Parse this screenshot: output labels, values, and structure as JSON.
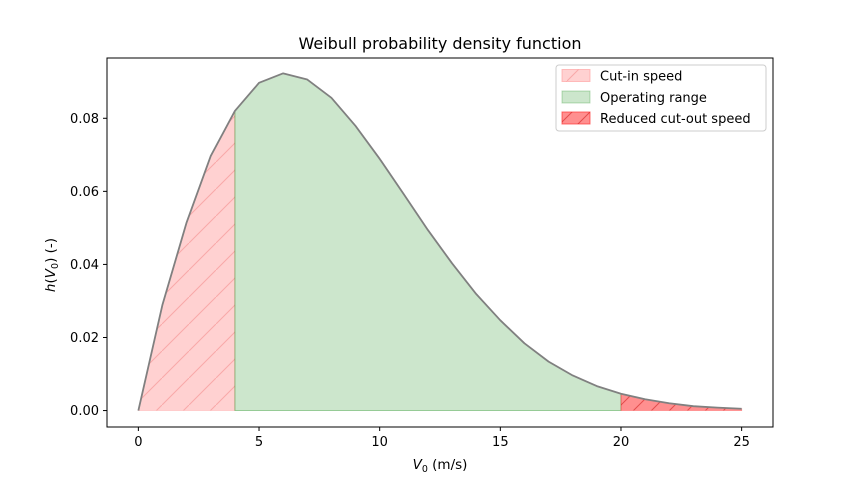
{
  "chart_data": {
    "type": "area",
    "title": "Weibull probability density function",
    "xlabel": {
      "var": "V",
      "sub": "0",
      "unit": " (m/s)"
    },
    "ylabel": {
      "fn": "h",
      "var": "V",
      "sub": "0",
      "unit": " (-)"
    },
    "xlim": [
      -1.3,
      26.3
    ],
    "ylim": [
      -0.0045,
      0.0965
    ],
    "xticks": [
      0,
      5,
      10,
      15,
      20,
      25
    ],
    "xtick_labels": [
      "0",
      "5",
      "10",
      "15",
      "20",
      "25"
    ],
    "yticks": [
      0.0,
      0.02,
      0.04,
      0.06,
      0.08
    ],
    "ytick_labels": [
      "0.00",
      "0.02",
      "0.04",
      "0.06",
      "0.08"
    ],
    "grid": false,
    "legend_position": "upper right",
    "curve": {
      "x": [
        0,
        1,
        2,
        3,
        4,
        5,
        6,
        7,
        8,
        9,
        10,
        11,
        12,
        13,
        14,
        15,
        16,
        17,
        18,
        19,
        20,
        21,
        22,
        23,
        24,
        25
      ],
      "y": [
        0.0,
        0.029,
        0.0515,
        0.0697,
        0.082,
        0.0897,
        0.0923,
        0.0906,
        0.0856,
        0.0779,
        0.0689,
        0.0592,
        0.0494,
        0.0403,
        0.0319,
        0.0247,
        0.0184,
        0.0134,
        0.0096,
        0.0067,
        0.0046,
        0.0031,
        0.002,
        0.0012,
        0.0008,
        0.0005
      ],
      "color": "#808080"
    },
    "regions": [
      {
        "name": "Cut-in speed",
        "x_start": 0,
        "x_end": 4,
        "fill": "#ff9999",
        "fill_opacity": 0.45,
        "hatch": "/",
        "hatch_color": "#ff9999"
      },
      {
        "name": "Operating range",
        "x_start": 4,
        "x_end": 20,
        "fill": "#008000",
        "fill_opacity": 0.2,
        "hatch": "",
        "hatch_color": ""
      },
      {
        "name": "Reduced cut-out speed",
        "x_start": 20,
        "x_end": 25,
        "fill": "#ff3333",
        "fill_opacity": 0.55,
        "hatch": "/",
        "hatch_color": "#e03030"
      }
    ]
  }
}
